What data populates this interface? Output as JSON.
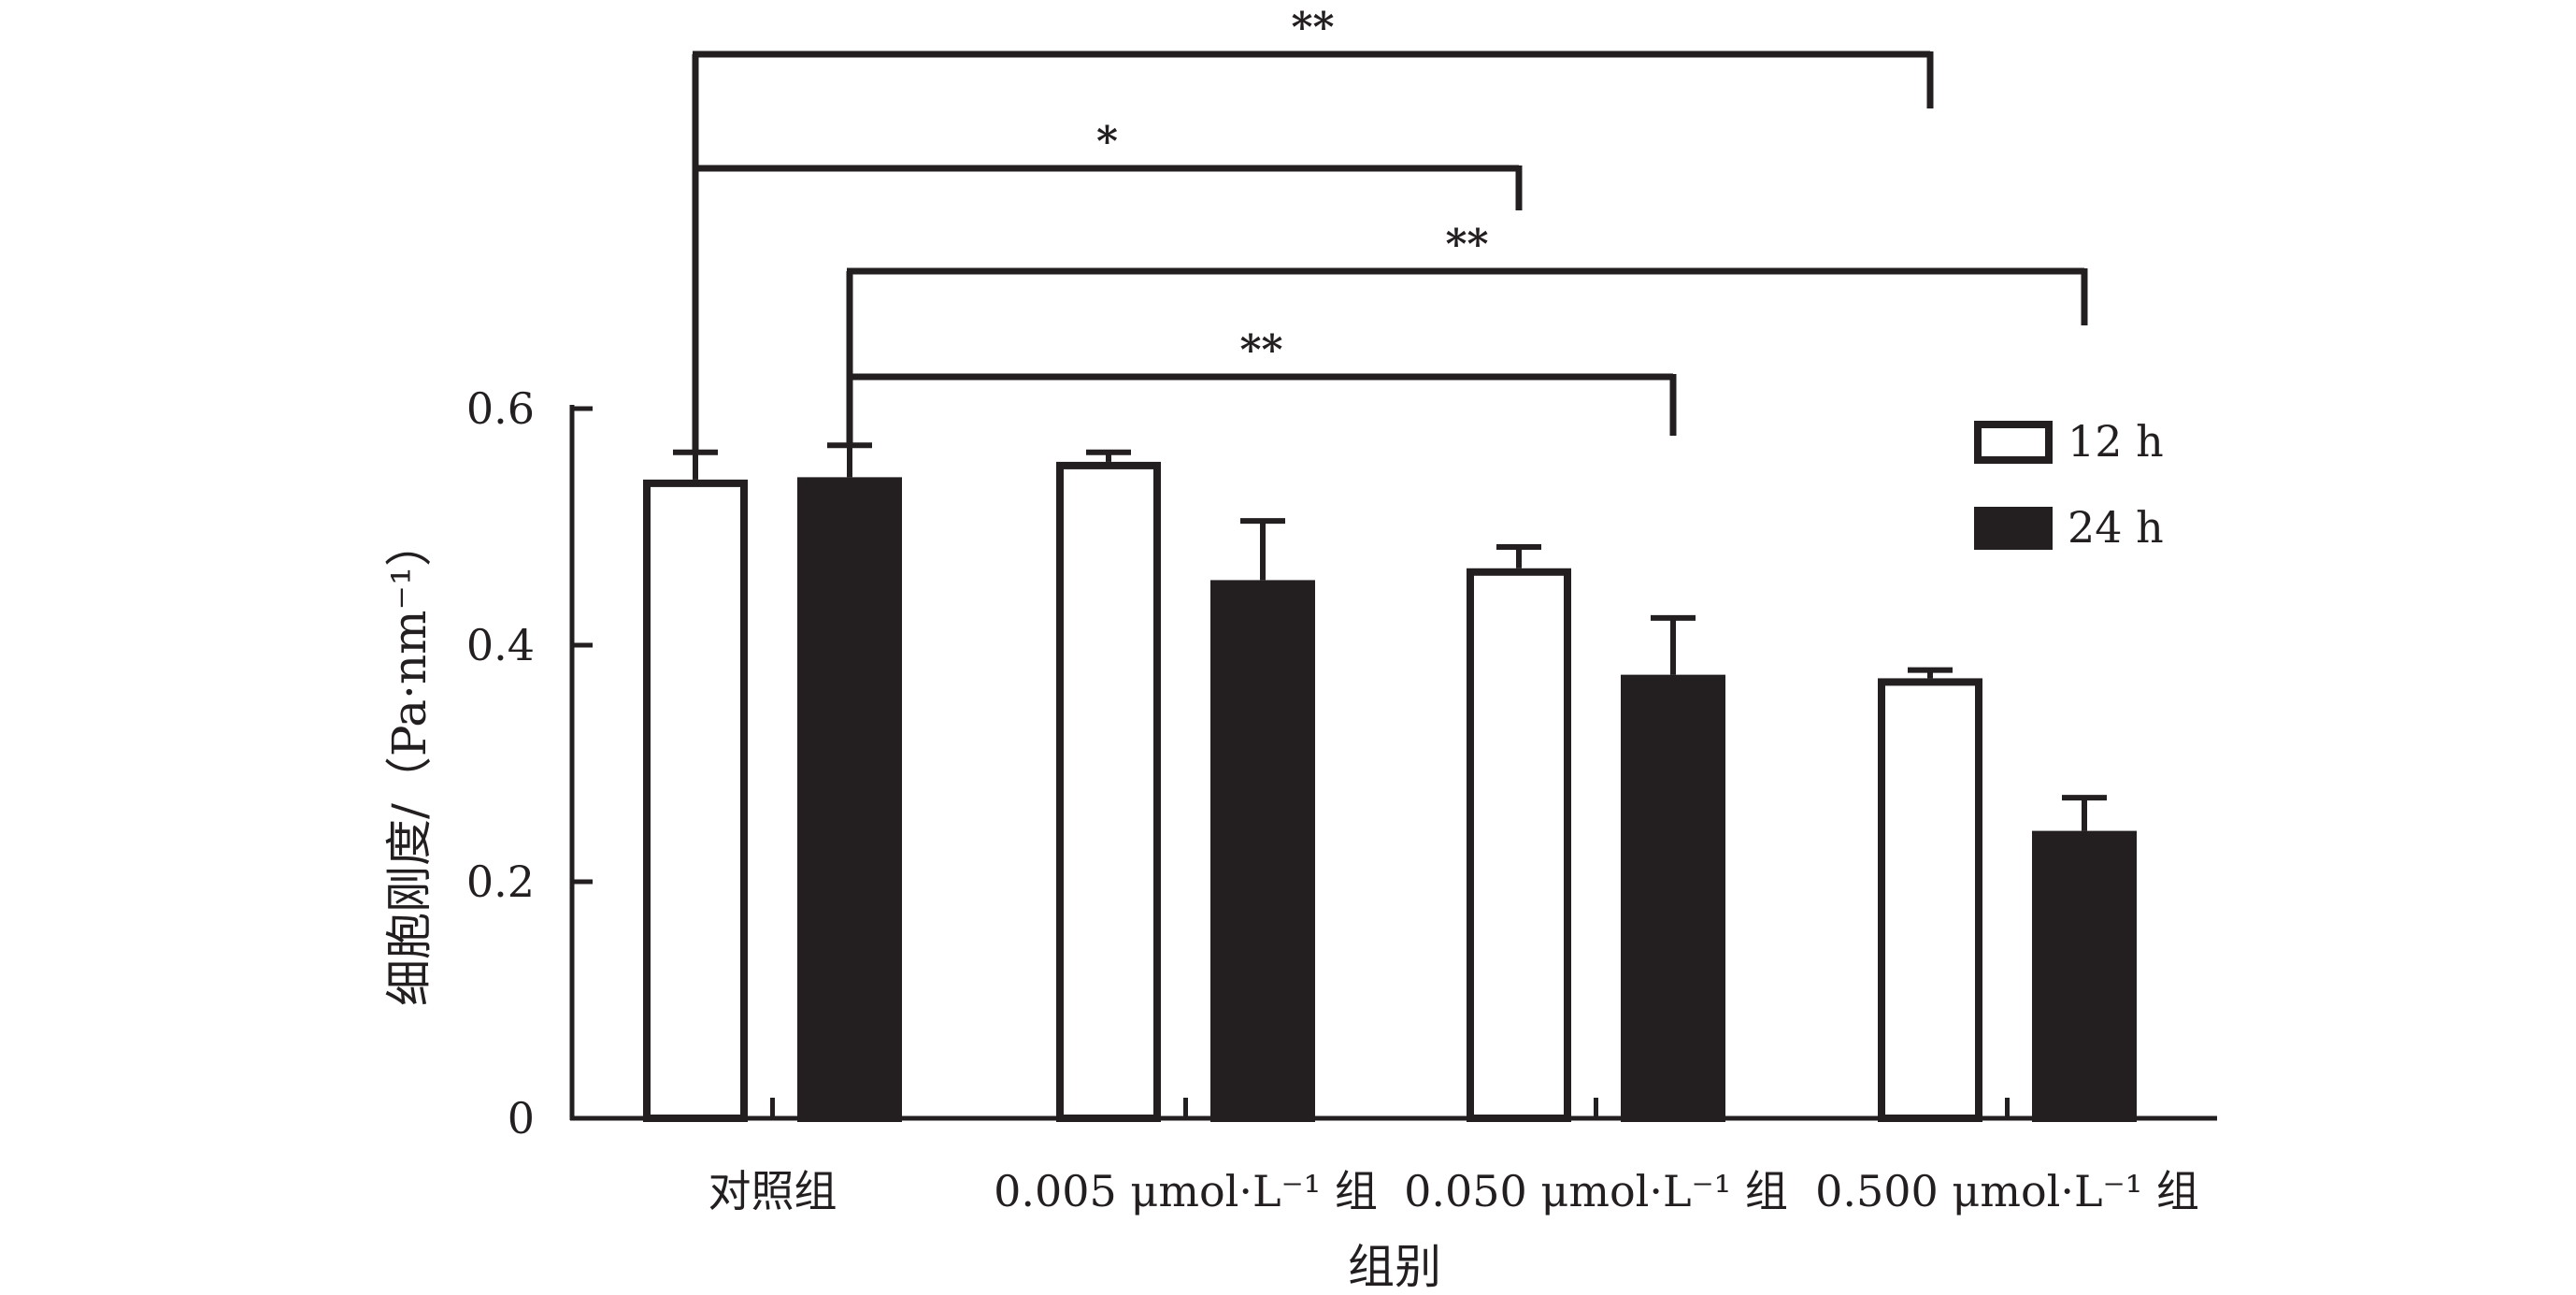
{
  "chart_data": {
    "type": "bar",
    "xlabel": "组别",
    "ylabel": "细胞刚度/（Pa·nm⁻¹）",
    "ylim": [
      0,
      0.6
    ],
    "yticks": [
      {
        "value": 0,
        "label": "0"
      },
      {
        "value": 0.2,
        "label": "0.2"
      },
      {
        "value": 0.4,
        "label": "0.4"
      },
      {
        "value": 0.6,
        "label": "0.6"
      }
    ],
    "categories": [
      "对照组",
      "0.005 μmol·L⁻¹ 组",
      "0.050 μmol·L⁻¹ 组",
      "0.500 μmol·L⁻¹ 组"
    ],
    "series": [
      {
        "name": "12 h",
        "values": [
          0.54,
          0.555,
          0.465,
          0.372
        ],
        "errors": [
          0.023,
          0.008,
          0.018,
          0.007
        ],
        "fill": "#ffffff",
        "stroke": "#231f20"
      },
      {
        "name": "24 h",
        "values": [
          0.542,
          0.455,
          0.375,
          0.243
        ],
        "errors": [
          0.027,
          0.05,
          0.048,
          0.028
        ],
        "fill": "#231f20",
        "stroke": "#231f20"
      }
    ],
    "legend": {
      "position": "top-right"
    },
    "grid": false,
    "significance": [
      {
        "label": "**",
        "from": {
          "category": 0,
          "series": 0
        },
        "to": {
          "category": 3,
          "series": 0
        }
      },
      {
        "label": "*",
        "from": {
          "category": 0,
          "series": 0
        },
        "to": {
          "category": 2,
          "series": 0
        }
      },
      {
        "label": "**",
        "from": {
          "category": 0,
          "series": 1
        },
        "to": {
          "category": 3,
          "series": 1
        }
      },
      {
        "label": "**",
        "from": {
          "category": 0,
          "series": 1
        },
        "to": {
          "category": 2,
          "series": 1
        }
      }
    ]
  }
}
